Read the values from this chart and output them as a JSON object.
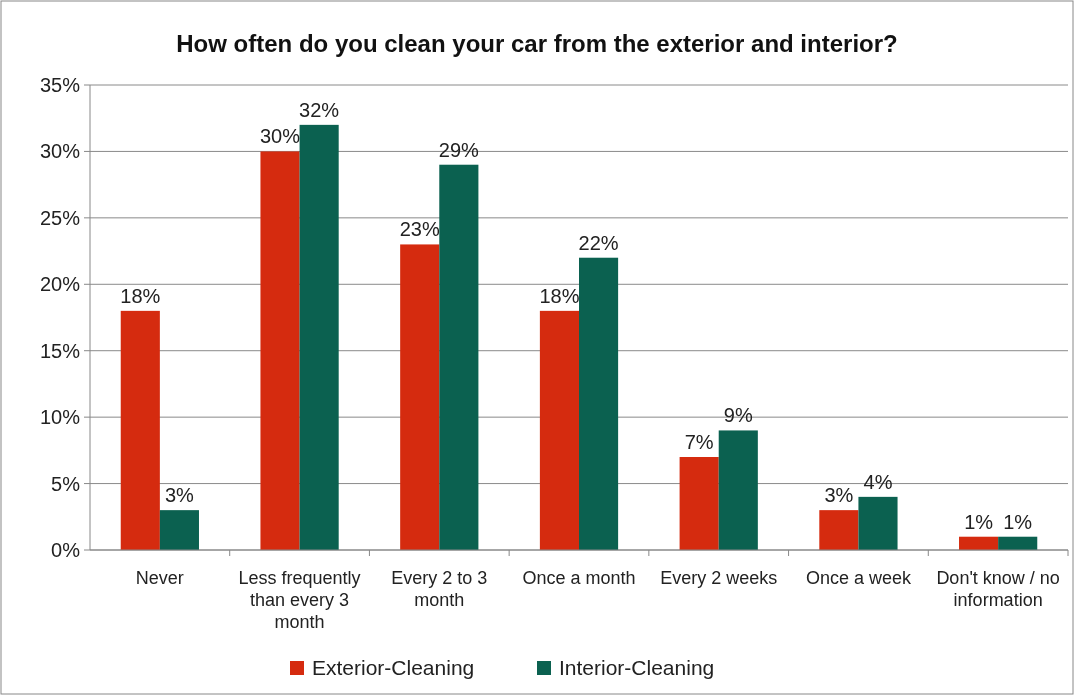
{
  "chart_data": {
    "type": "bar",
    "title": "How often do you clean your car from the exterior and interior?",
    "categories": [
      "Never",
      "Less frequently than every 3 month",
      "Every 2 to 3 month",
      "Once a month",
      "Every 2 weeks",
      "Once a week",
      "Don't know / no information"
    ],
    "series": [
      {
        "name": "Exterior-Cleaning",
        "color": "#d52b0f",
        "values": [
          18,
          30,
          23,
          18,
          7,
          3,
          1
        ],
        "value_labels": [
          "18%",
          "30%",
          "23%",
          "18%",
          "7%",
          "3%",
          "1%"
        ]
      },
      {
        "name": "Interior-Cleaning",
        "color": "#0b6150",
        "values": [
          3,
          32,
          29,
          22,
          9,
          4,
          1
        ],
        "value_labels": [
          "3%",
          "32%",
          "29%",
          "22%",
          "9%",
          "4%",
          "1%"
        ]
      }
    ],
    "ylim": [
      0,
      35
    ],
    "yticks": [
      {
        "value": 0,
        "label": "0%"
      },
      {
        "value": 5,
        "label": "5%"
      },
      {
        "value": 10,
        "label": "10%"
      },
      {
        "value": 15,
        "label": "15%"
      },
      {
        "value": 20,
        "label": "20%"
      },
      {
        "value": 25,
        "label": "25%"
      },
      {
        "value": 30,
        "label": "30%"
      },
      {
        "value": 35,
        "label": "35%"
      }
    ],
    "grid": "y",
    "legend": "bottom"
  }
}
